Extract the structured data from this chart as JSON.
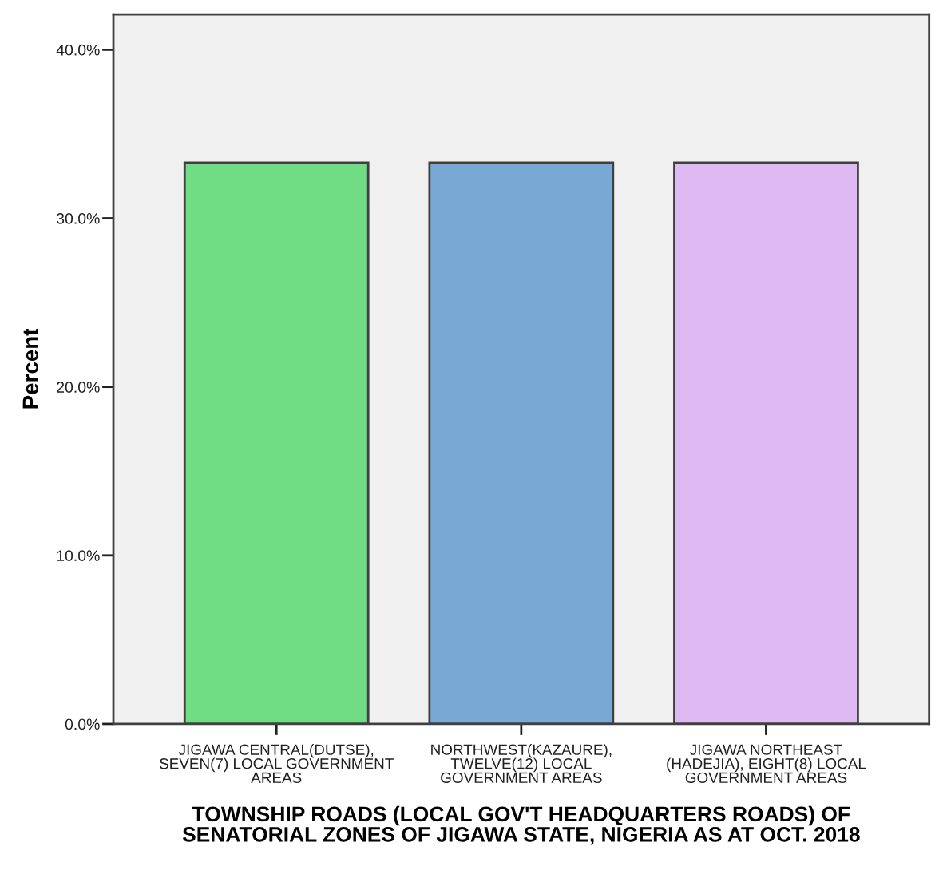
{
  "chart_data": {
    "type": "bar",
    "categories": [
      "JIGAWA CENTRAL(DUTSE),\nSEVEN(7) LOCAL GOVERNMENT\nAREAS",
      "NORTHWEST(KAZAURE),\nTWELVE(12) LOCAL\nGOVERNMENT AREAS",
      "JIGAWA NORTHEAST\n(HADEJIA), EIGHT(8) LOCAL\nGOVERNMENT AREAS"
    ],
    "values": [
      33.3,
      33.3,
      33.3
    ],
    "colors": [
      "#70dc84",
      "#7aa8d5",
      "#dfb9f1"
    ],
    "xlabel": "TOWNSHIP ROADS (LOCAL GOV'T HEADQUARTERS ROADS) OF\nSENATORIAL ZONES OF JIGAWA STATE, NIGERIA AS AT OCT. 2018",
    "ylabel": "Percent",
    "ylim": [
      0,
      42.1
    ],
    "yticks": [
      {
        "value": 0,
        "label": "0.0%"
      },
      {
        "value": 10,
        "label": "10.0%"
      },
      {
        "value": 20,
        "label": "20.0%"
      },
      {
        "value": 30,
        "label": "30.0%"
      },
      {
        "value": 40,
        "label": "40.0%"
      }
    ],
    "grid": false,
    "legend": false
  }
}
